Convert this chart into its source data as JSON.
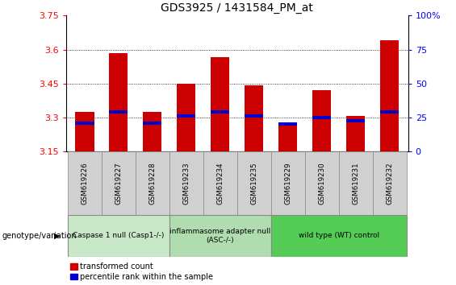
{
  "title": "GDS3925 / 1431584_PM_at",
  "samples": [
    "GSM619226",
    "GSM619227",
    "GSM619228",
    "GSM619233",
    "GSM619234",
    "GSM619235",
    "GSM619229",
    "GSM619230",
    "GSM619231",
    "GSM619232"
  ],
  "red_values": [
    3.325,
    3.585,
    3.325,
    3.45,
    3.565,
    3.44,
    3.275,
    3.42,
    3.305,
    3.64
  ],
  "blue_values": [
    3.275,
    3.325,
    3.275,
    3.305,
    3.325,
    3.305,
    3.27,
    3.3,
    3.285,
    3.325
  ],
  "y_min": 3.15,
  "y_max": 3.75,
  "y_ticks": [
    3.15,
    3.3,
    3.45,
    3.6,
    3.75
  ],
  "y_ticks_labels": [
    "3.15",
    "3.3",
    "3.45",
    "3.6",
    "3.75"
  ],
  "right_ticks": [
    0,
    25,
    50,
    75,
    100
  ],
  "right_ticks_labels": [
    "0",
    "25",
    "50",
    "75",
    "100%"
  ],
  "groups": [
    {
      "label": "Caspase 1 null (Casp1-/-)",
      "start": 0,
      "end": 3,
      "color": "#c8e8c8"
    },
    {
      "label": "inflammasome adapter null\n(ASC-/-)",
      "start": 3,
      "end": 6,
      "color": "#b0ddb0"
    },
    {
      "label": "wild type (WT) control",
      "start": 6,
      "end": 10,
      "color": "#55cc55"
    }
  ],
  "bar_color": "#cc0000",
  "blue_color": "#0000cc",
  "sample_bg_color": "#d0d0d0",
  "legend_label_red": "transformed count",
  "legend_label_blue": "percentile rank within the sample",
  "genotype_label": "genotype/variation"
}
